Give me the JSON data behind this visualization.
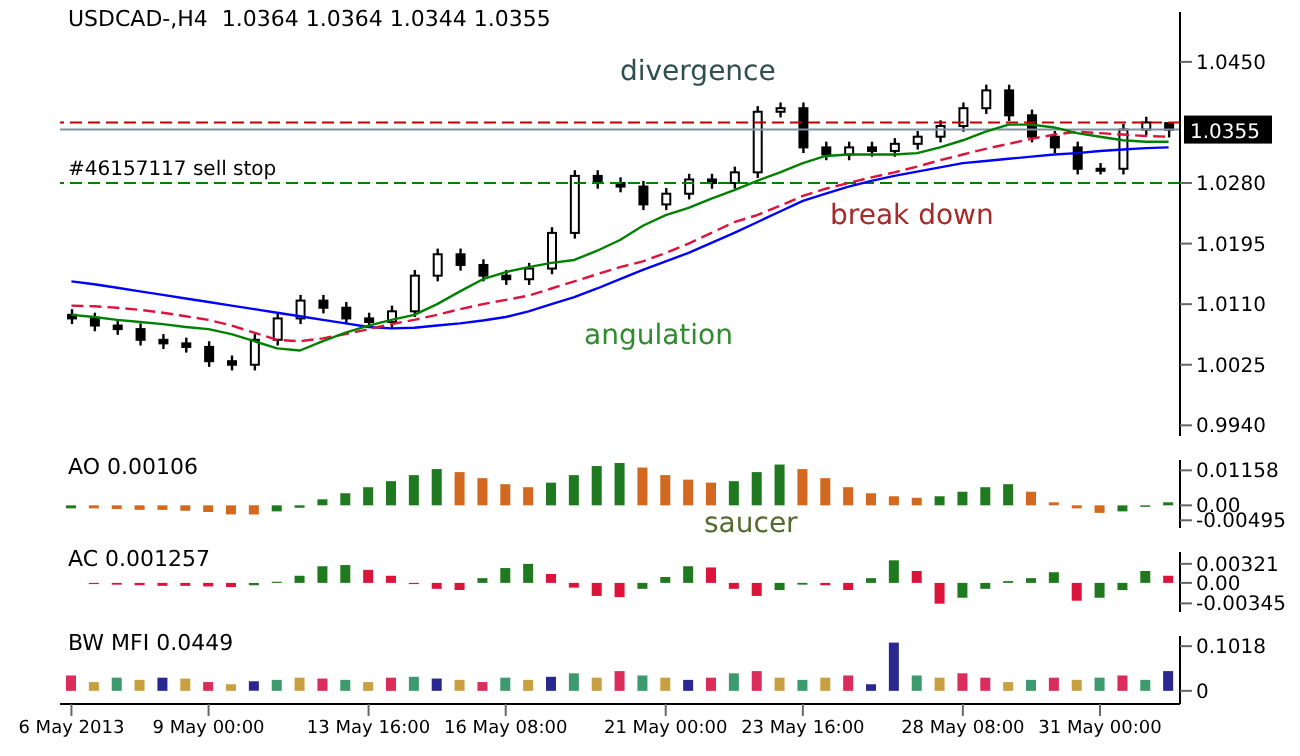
{
  "chart_data": [
    {
      "type": "candlestick",
      "title": "USDCAD-,H4  1.0364 1.0364 1.0344 1.0355",
      "tick_labels": "y",
      "categories": [
        null,
        null,
        null,
        null,
        null,
        null,
        null,
        null,
        null,
        null,
        null,
        null,
        null,
        null,
        null,
        null,
        null,
        null,
        null,
        null,
        null,
        null,
        null,
        null,
        null,
        null,
        null,
        null,
        null,
        null,
        null,
        null,
        null,
        null,
        null,
        null,
        null,
        null,
        null,
        null,
        null,
        null,
        null,
        null,
        null,
        null,
        null,
        null,
        null
      ],
      "ohlc": [
        [
          1.0095,
          1.0103,
          1.0082,
          1.009
        ],
        [
          1.009,
          1.0098,
          1.0072,
          1.008
        ],
        [
          1.008,
          1.0088,
          1.0067,
          1.0075
        ],
        [
          1.0075,
          1.0083,
          1.0052,
          1.006
        ],
        [
          1.006,
          1.0068,
          1.0047,
          1.0055
        ],
        [
          1.0055,
          1.0063,
          1.0042,
          1.005
        ],
        [
          1.005,
          1.0058,
          1.0022,
          1.003
        ],
        [
          1.003,
          1.0038,
          1.0017,
          1.0025
        ],
        [
          1.0025,
          1.0068,
          1.0017,
          1.006
        ],
        [
          1.006,
          1.0098,
          1.0052,
          1.009
        ],
        [
          1.009,
          1.0123,
          1.0082,
          1.0115
        ],
        [
          1.0115,
          1.0123,
          1.0097,
          1.0105
        ],
        [
          1.0105,
          1.0113,
          1.0082,
          1.009
        ],
        [
          1.009,
          1.0098,
          1.0077,
          1.0085
        ],
        [
          1.0085,
          1.0108,
          1.0077,
          1.01
        ],
        [
          1.01,
          1.0158,
          1.0092,
          1.015
        ],
        [
          1.015,
          1.0188,
          1.0142,
          1.018
        ],
        [
          1.018,
          1.0188,
          1.0157,
          1.0165
        ],
        [
          1.0165,
          1.0173,
          1.0142,
          1.015
        ],
        [
          1.015,
          1.0158,
          1.0137,
          1.0145
        ],
        [
          1.0145,
          1.0168,
          1.0137,
          1.016
        ],
        [
          1.016,
          1.0218,
          1.0152,
          1.021
        ],
        [
          1.021,
          1.0298,
          1.0202,
          1.029
        ],
        [
          1.029,
          1.0298,
          1.0272,
          1.028
        ],
        [
          1.028,
          1.0288,
          1.0267,
          1.0275
        ],
        [
          1.0275,
          1.0283,
          1.0242,
          1.025
        ],
        [
          1.025,
          1.0273,
          1.0242,
          1.0265
        ],
        [
          1.0265,
          1.0293,
          1.0257,
          1.0285
        ],
        [
          1.0285,
          1.0293,
          1.0272,
          1.028
        ],
        [
          1.028,
          1.0303,
          1.0272,
          1.0295
        ],
        [
          1.0295,
          1.0388,
          1.0287,
          1.038
        ],
        [
          1.038,
          1.0393,
          1.0372,
          1.0385
        ],
        [
          1.0385,
          1.0393,
          1.0322,
          1.033
        ],
        [
          1.033,
          1.0338,
          1.0312,
          1.032
        ],
        [
          1.032,
          1.0338,
          1.0312,
          1.033
        ],
        [
          1.033,
          1.0338,
          1.0317,
          1.0325
        ],
        [
          1.0325,
          1.0343,
          1.0317,
          1.0335
        ],
        [
          1.0335,
          1.0353,
          1.0327,
          1.0345
        ],
        [
          1.0345,
          1.0368,
          1.0337,
          1.036
        ],
        [
          1.036,
          1.0393,
          1.0352,
          1.0385
        ],
        [
          1.0385,
          1.0418,
          1.0377,
          1.041
        ],
        [
          1.041,
          1.0418,
          1.0367,
          1.0375
        ],
        [
          1.0375,
          1.0383,
          1.0337,
          1.0345
        ],
        [
          1.0345,
          1.0353,
          1.0322,
          1.033
        ],
        [
          1.033,
          1.0338,
          1.0292,
          1.03
        ],
        [
          1.03,
          1.0308,
          1.0292,
          1.03
        ],
        [
          1.03,
          1.0363,
          1.0292,
          1.0355
        ],
        [
          1.0355,
          1.0373,
          1.0347,
          1.0365
        ],
        [
          1.0364,
          1.0364,
          1.0344,
          1.0355
        ]
      ],
      "series": [
        {
          "type": "line",
          "color": "#0000ff",
          "line_style": "solid",
          "values": [
            1.0142,
            1.0138,
            1.0133,
            1.0128,
            1.0123,
            1.0118,
            1.0113,
            1.0108,
            1.0103,
            1.0098,
            1.0093,
            1.0088,
            1.0083,
            1.0078,
            1.0076,
            1.0077,
            1.008,
            1.0083,
            1.0087,
            1.0092,
            1.01,
            1.011,
            1.012,
            1.0132,
            1.0145,
            1.0158,
            1.017,
            1.0182,
            1.0196,
            1.021,
            1.0225,
            1.024,
            1.0255,
            1.0265,
            1.0275,
            1.0283,
            1.029,
            1.0296,
            1.0302,
            1.0308,
            1.0311,
            1.0314,
            1.0317,
            1.032,
            1.0322,
            1.0325,
            1.0327,
            1.0329,
            1.033
          ]
        },
        {
          "type": "line",
          "color": "#dc143c",
          "line_style": "dashed",
          "values": [
            1.0108,
            1.0107,
            1.0105,
            1.0102,
            1.0098,
            1.0093,
            1.0088,
            1.008,
            1.007,
            1.006,
            1.0058,
            1.0062,
            1.0068,
            1.0075,
            1.0082,
            1.0088,
            1.0095,
            1.0103,
            1.011,
            1.0116,
            1.0122,
            1.0132,
            1.0142,
            1.0152,
            1.0162,
            1.017,
            1.0182,
            1.0195,
            1.021,
            1.0225,
            1.0235,
            1.0248,
            1.0262,
            1.0272,
            1.028,
            1.0288,
            1.0295,
            1.0303,
            1.0312,
            1.032,
            1.0328,
            1.0335,
            1.0342,
            1.0348,
            1.0352,
            1.035,
            1.0348,
            1.0346,
            1.0345
          ]
        },
        {
          "type": "line",
          "color": "#008000",
          "line_style": "solid",
          "values": [
            1.0095,
            1.0092,
            1.0088,
            1.0085,
            1.0082,
            1.0078,
            1.0075,
            1.0068,
            1.0058,
            1.0048,
            1.0045,
            1.0058,
            1.007,
            1.008,
            1.0088,
            1.0095,
            1.011,
            1.0128,
            1.0145,
            1.0155,
            1.0162,
            1.0168,
            1.0172,
            1.0185,
            1.02,
            1.022,
            1.0235,
            1.0245,
            1.0258,
            1.027,
            1.0283,
            1.0295,
            1.0308,
            1.0318,
            1.032,
            1.032,
            1.032,
            1.0322,
            1.033,
            1.034,
            1.0352,
            1.0362,
            1.0362,
            1.0358,
            1.035,
            1.0345,
            1.034,
            1.0338,
            1.0338
          ]
        }
      ],
      "ylim": [
        0.9925,
        1.052
      ],
      "yticks": [
        {
          "value": 0.994,
          "label": "0.9940"
        },
        1.0025,
        {
          "value": 1.011,
          "label": "1.0110"
        },
        1.0195,
        {
          "value": 1.028,
          "label": "1.0280"
        },
        {
          "value": 1.045,
          "label": "1.0450"
        }
      ],
      "ref_lines": [
        {
          "axis": "y",
          "value": 1.0365,
          "color": "#c00000",
          "line_style": "dashed"
        },
        {
          "axis": "y",
          "value": 1.0355,
          "label": "1.0355",
          "color": "#8090a0",
          "line_style": "solid"
        },
        {
          "axis": "y",
          "value": 1.028,
          "label": "#46157117 sell stop",
          "color": "#008000",
          "line_style": "dashed"
        }
      ],
      "annotations": [
        "divergence",
        "angulation",
        "break down"
      ]
    },
    {
      "type": "bar",
      "title": "AO 0.00106",
      "tick_labels": "y",
      "categories": [
        null,
        null,
        null,
        null,
        null,
        null,
        null,
        null,
        null,
        null,
        null,
        null,
        null,
        null,
        null,
        null,
        null,
        null,
        null,
        null,
        null,
        null,
        null,
        null,
        null,
        null,
        null,
        null,
        null,
        null,
        null,
        null,
        null,
        null,
        null,
        null,
        null,
        null,
        null,
        null,
        null,
        null,
        null,
        null,
        null,
        null,
        null,
        null,
        null
      ],
      "values": [
        -0.001,
        -0.001,
        -0.0012,
        -0.0015,
        -0.0015,
        -0.0018,
        -0.0022,
        -0.003,
        -0.003,
        -0.002,
        -0.0008,
        0.002,
        0.004,
        0.006,
        0.008,
        0.01,
        0.012,
        0.011,
        0.009,
        0.007,
        0.006,
        0.0075,
        0.01,
        0.013,
        0.014,
        0.0125,
        0.01,
        0.0085,
        0.0075,
        0.008,
        0.011,
        0.0135,
        0.012,
        0.009,
        0.006,
        0.004,
        0.003,
        0.0025,
        0.003,
        0.0045,
        0.006,
        0.007,
        0.0045,
        0.001,
        -0.001,
        -0.0025,
        -0.002,
        -0.0005,
        0.001
      ],
      "colors": [
        "#1f7a1f",
        "#d2691e",
        "#d2691e",
        "#d2691e",
        "#d2691e",
        "#d2691e",
        "#d2691e",
        "#d2691e",
        "#d2691e",
        "#1f7a1f",
        "#1f7a1f",
        "#1f7a1f",
        "#1f7a1f",
        "#1f7a1f",
        "#1f7a1f",
        "#1f7a1f",
        "#1f7a1f",
        "#d2691e",
        "#d2691e",
        "#d2691e",
        "#d2691e",
        "#1f7a1f",
        "#1f7a1f",
        "#1f7a1f",
        "#1f7a1f",
        "#d2691e",
        "#d2691e",
        "#d2691e",
        "#d2691e",
        "#1f7a1f",
        "#1f7a1f",
        "#1f7a1f",
        "#d2691e",
        "#d2691e",
        "#d2691e",
        "#d2691e",
        "#d2691e",
        "#d2691e",
        "#1f7a1f",
        "#1f7a1f",
        "#1f7a1f",
        "#1f7a1f",
        "#d2691e",
        "#d2691e",
        "#d2691e",
        "#d2691e",
        "#1f7a1f",
        "#1f7a1f",
        "#1f7a1f"
      ],
      "ylim": [
        -0.0075,
        0.015
      ],
      "yticks": [
        -0.00495,
        {
          "value": 0,
          "label": "0.00"
        },
        0.01158
      ],
      "annotations": [
        "saucer"
      ]
    },
    {
      "type": "bar",
      "title": "AC 0.001257",
      "tick_labels": "y",
      "categories": [
        null,
        null,
        null,
        null,
        null,
        null,
        null,
        null,
        null,
        null,
        null,
        null,
        null,
        null,
        null,
        null,
        null,
        null,
        null,
        null,
        null,
        null,
        null,
        null,
        null,
        null,
        null,
        null,
        null,
        null,
        null,
        null,
        null,
        null,
        null,
        null,
        null,
        null,
        null,
        null,
        null,
        null,
        null,
        null,
        null,
        null,
        null,
        null,
        null
      ],
      "values": [
        0.0,
        -0.0002,
        -0.0003,
        -0.0004,
        -0.0005,
        -0.0005,
        -0.0006,
        -0.0007,
        -0.0004,
        0.0002,
        0.0012,
        0.0028,
        0.003,
        0.0022,
        0.0012,
        -0.0002,
        -0.001,
        -0.0012,
        0.0008,
        0.0025,
        0.0032,
        0.0015,
        -0.0008,
        -0.0022,
        -0.0024,
        -0.001,
        0.001,
        0.0028,
        0.0026,
        -0.001,
        -0.0022,
        -0.0012,
        -0.0003,
        -0.0004,
        -0.0012,
        0.0008,
        0.0038,
        0.002,
        -0.0035,
        -0.0025,
        -0.001,
        0.0003,
        0.0008,
        0.0018,
        -0.003,
        -0.0025,
        -0.0012,
        0.002,
        0.0012
      ],
      "colors": [
        "#1f7a1f",
        "#dc143c",
        "#dc143c",
        "#dc143c",
        "#dc143c",
        "#dc143c",
        "#dc143c",
        "#dc143c",
        "#1f7a1f",
        "#1f7a1f",
        "#1f7a1f",
        "#1f7a1f",
        "#1f7a1f",
        "#dc143c",
        "#dc143c",
        "#dc143c",
        "#dc143c",
        "#dc143c",
        "#1f7a1f",
        "#1f7a1f",
        "#1f7a1f",
        "#dc143c",
        "#dc143c",
        "#dc143c",
        "#dc143c",
        "#1f7a1f",
        "#1f7a1f",
        "#1f7a1f",
        "#dc143c",
        "#dc143c",
        "#dc143c",
        "#1f7a1f",
        "#1f7a1f",
        "#dc143c",
        "#dc143c",
        "#1f7a1f",
        "#1f7a1f",
        "#dc143c",
        "#dc143c",
        "#1f7a1f",
        "#1f7a1f",
        "#1f7a1f",
        "#1f7a1f",
        "#1f7a1f",
        "#dc143c",
        "#1f7a1f",
        "#1f7a1f",
        "#1f7a1f",
        "#dc143c"
      ],
      "ylim": [
        -0.0049,
        0.0052
      ],
      "yticks": [
        -0.00345,
        {
          "value": 0,
          "label": "0.00"
        },
        0.00321
      ]
    },
    {
      "type": "bar",
      "title": "BW MFI 0.0449",
      "categories": [
        "6 May 2013",
        null,
        null,
        null,
        null,
        null,
        "9 May 00:00",
        null,
        null,
        null,
        null,
        null,
        null,
        "13 May 16:00",
        null,
        null,
        null,
        null,
        null,
        "16 May 08:00",
        null,
        null,
        null,
        null,
        null,
        null,
        "21 May 00:00",
        null,
        null,
        null,
        null,
        null,
        "23 May 16:00",
        null,
        null,
        null,
        null,
        null,
        null,
        "28 May 08:00",
        null,
        null,
        null,
        null,
        null,
        "31 May 00:00",
        null,
        null,
        null
      ],
      "values": [
        0.035,
        0.02,
        0.03,
        0.025,
        0.03,
        0.028,
        0.02,
        0.015,
        0.022,
        0.025,
        0.03,
        0.028,
        0.025,
        0.02,
        0.03,
        0.032,
        0.028,
        0.025,
        0.02,
        0.03,
        0.025,
        0.032,
        0.04,
        0.03,
        0.045,
        0.035,
        0.03,
        0.025,
        0.03,
        0.04,
        0.045,
        0.03,
        0.025,
        0.03,
        0.035,
        0.015,
        0.11,
        0.035,
        0.03,
        0.04,
        0.03,
        0.02,
        0.025,
        0.03,
        0.025,
        0.03,
        0.035,
        0.025,
        0.045
      ],
      "colors": [
        "#dc2c5c",
        "#c8a040",
        "#3c9a6c",
        "#c8a040",
        "#282890",
        "#c8a040",
        "#dc2c5c",
        "#c8a040",
        "#282890",
        "#3c9a6c",
        "#c8a040",
        "#dc2c5c",
        "#3c9a6c",
        "#c8a040",
        "#dc2c5c",
        "#3c9a6c",
        "#282890",
        "#c8a040",
        "#dc2c5c",
        "#3c9a6c",
        "#c8a040",
        "#282890",
        "#3c9a6c",
        "#c8a040",
        "#dc2c5c",
        "#3c9a6c",
        "#c8a040",
        "#282890",
        "#dc2c5c",
        "#3c9a6c",
        "#dc2c5c",
        "#c8a040",
        "#3c9a6c",
        "#c8a040",
        "#dc2c5c",
        "#282890",
        "#282890",
        "#3c9a6c",
        "#c8a040",
        "#dc2c5c",
        "#dc2c5c",
        "#c8a040",
        "#3c9a6c",
        "#dc2c5c",
        "#c8a040",
        "#3c9a6c",
        "#dc2c5c",
        "#3c9a6c",
        "#282890"
      ],
      "ylim": [
        -0.03,
        0.125
      ],
      "yticks": [
        {
          "value": 0,
          "label": "0"
        },
        0.1018
      ]
    }
  ]
}
